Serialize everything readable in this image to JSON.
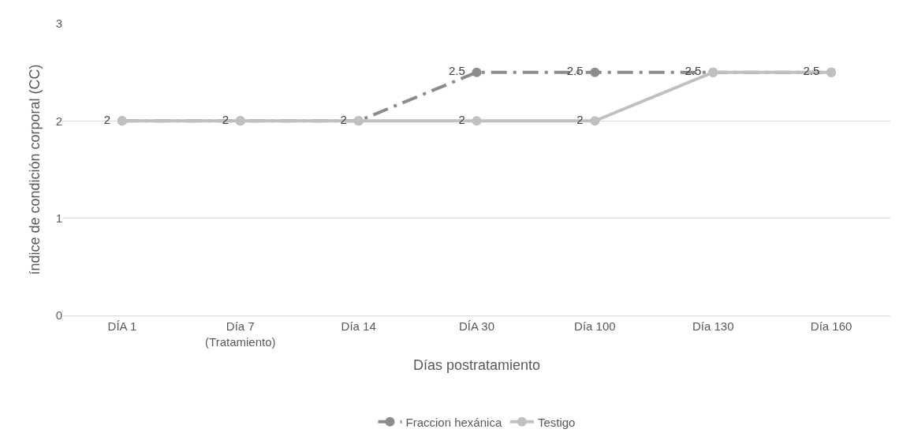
{
  "chart_data": {
    "type": "line",
    "xlabel": "Días postratamiento",
    "ylabel": "índice de condición corporal (CC)",
    "categories": [
      "DÍA 1",
      "Día 7\n(Tratamiento)",
      "Día 14",
      "DÍA 30",
      "Día 100",
      "Día 130",
      "Día 160"
    ],
    "series": [
      {
        "name": "Fraccion hexánica",
        "color": "#8c8c8c",
        "line_style": "dashed",
        "values": [
          2,
          2,
          2,
          2.5,
          2.5,
          2.5,
          2.5
        ],
        "value_labels": [
          null,
          null,
          null,
          "2.5",
          "2.5",
          "2.5",
          "2.5"
        ]
      },
      {
        "name": "Testigo",
        "color": "#c0c0c0",
        "line_style": "solid",
        "values": [
          2,
          2,
          2,
          2,
          2,
          2.5,
          2.5
        ],
        "value_labels": [
          "2",
          "2",
          "2",
          "2",
          "2",
          null,
          null
        ]
      }
    ],
    "ylim": [
      0,
      3
    ],
    "yticks": [
      0,
      1,
      2,
      3
    ],
    "grid": "y",
    "legend": "bottom",
    "marker": "circle"
  }
}
